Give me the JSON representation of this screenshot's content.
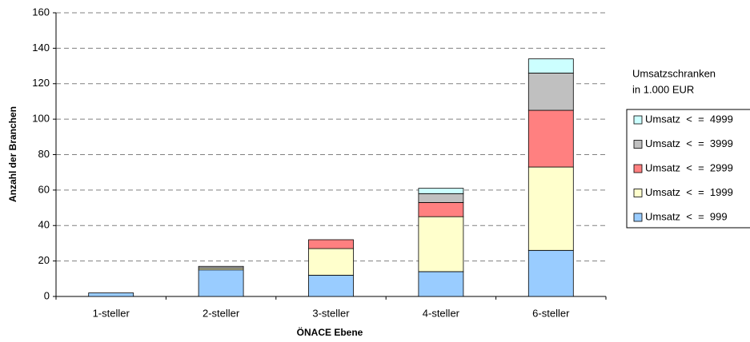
{
  "chart_data": {
    "type": "stacked_bar",
    "x_label": "ÖNACE Ebene",
    "y_label": "Anzahl der Branchen",
    "legend_title": [
      "Umsatzschranken",
      "in 1.000 EUR"
    ],
    "categories": [
      "1-steller",
      "2-steller",
      "3-steller",
      "4-steller",
      "6-steller"
    ],
    "series": [
      {
        "name": "Umsatz  <  =  999",
        "color": "#99ccff",
        "values": [
          2,
          15,
          12,
          14,
          26
        ]
      },
      {
        "name": "Umsatz  <  =  1999",
        "color": "#ffffcc",
        "values": [
          0,
          1,
          15,
          31,
          47
        ]
      },
      {
        "name": "Umsatz  <  =  2999",
        "color": "#ff8080",
        "values": [
          0,
          0,
          5,
          8,
          32
        ]
      },
      {
        "name": "Umsatz  <  =  3999",
        "color": "#c0c0c0",
        "values": [
          0,
          1,
          0,
          5,
          21
        ]
      },
      {
        "name": "Umsatz  <  =  4999",
        "color": "#ccffff",
        "values": [
          0,
          0,
          0,
          3,
          8
        ]
      }
    ],
    "ylim": [
      0,
      160
    ],
    "yticks": [
      0,
      20,
      40,
      60,
      80,
      100,
      120,
      140,
      160
    ],
    "grid": true,
    "legend": "right"
  }
}
